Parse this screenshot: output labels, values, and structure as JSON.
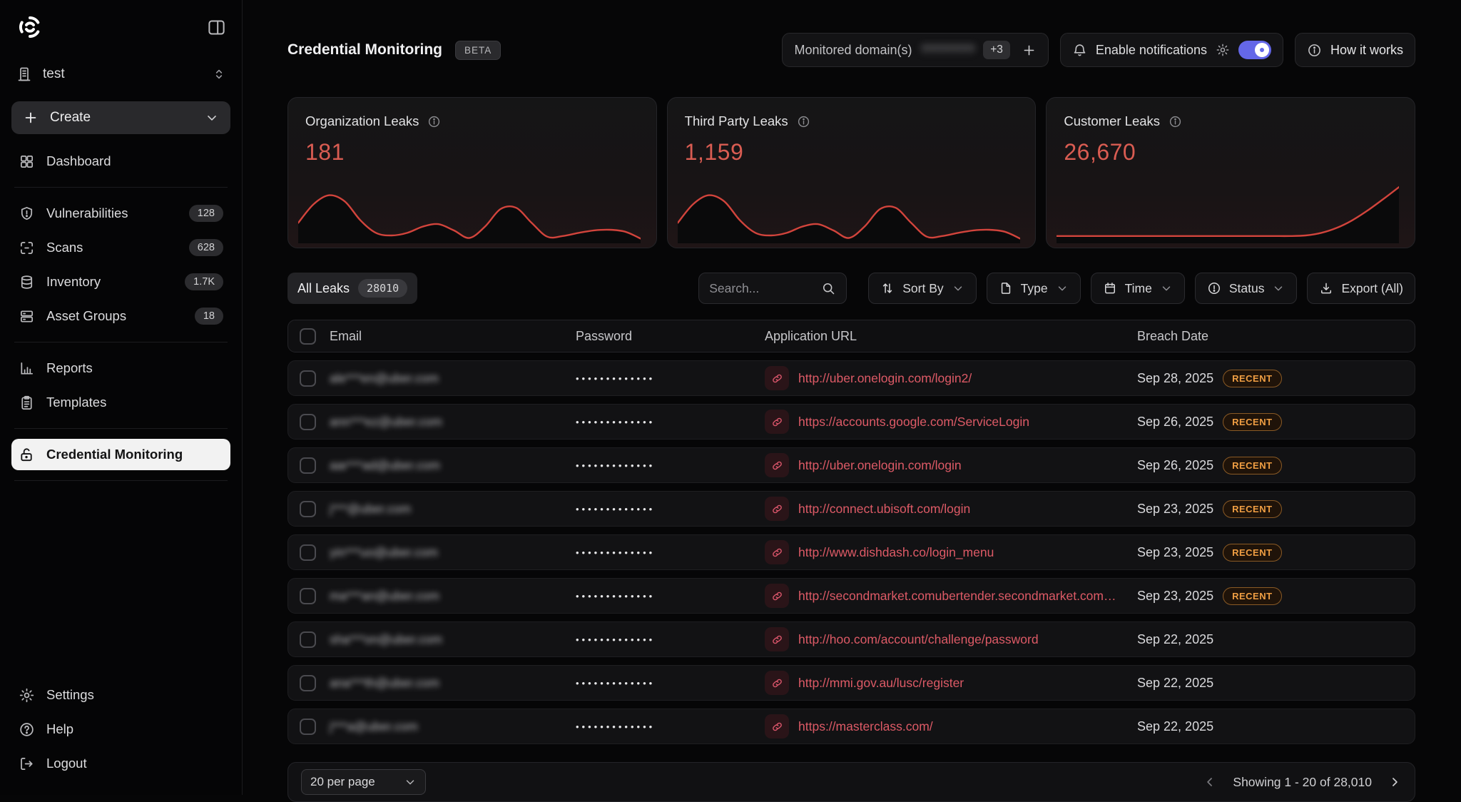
{
  "colors": {
    "accent_red": "#d95c52",
    "chart_red": "#d2443c",
    "link_red": "#dd5a66",
    "recent_orange": "#ef9e43",
    "toggle_purple": "#6467e8"
  },
  "sidebar": {
    "workspace": "test",
    "create_label": "Create",
    "items": [
      {
        "label": "Dashboard"
      },
      {
        "label": "Vulnerabilities",
        "badge": "128"
      },
      {
        "label": "Scans",
        "badge": "628"
      },
      {
        "label": "Inventory",
        "badge": "1.7K"
      },
      {
        "label": "Asset Groups",
        "badge": "18"
      },
      {
        "label": "Reports"
      },
      {
        "label": "Templates"
      },
      {
        "label": "Credential Monitoring"
      }
    ],
    "footer_items": [
      {
        "label": "Settings"
      },
      {
        "label": "Help"
      },
      {
        "label": "Logout"
      }
    ]
  },
  "header": {
    "title": "Credential Monitoring",
    "beta_badge": "BETA",
    "monitored_label": "Monitored domain(s)",
    "monitored_domain_masked": "????????",
    "monitored_more": "+3",
    "notifications_label": "Enable notifications",
    "how_it_works": "How it works"
  },
  "stats": [
    {
      "label": "Organization Leaks",
      "value": "181"
    },
    {
      "label": "Third Party Leaks",
      "value": "1,159"
    },
    {
      "label": "Customer Leaks",
      "value": "26,670"
    }
  ],
  "chart_data": [
    {
      "type": "area",
      "title": "Organization Leaks",
      "total": 181,
      "values": [
        28,
        58,
        72,
        62,
        32,
        12,
        8,
        12,
        22,
        26,
        16,
        4,
        22,
        50,
        52,
        28,
        6,
        7,
        12,
        16,
        17,
        14,
        3
      ]
    },
    {
      "type": "area",
      "title": "Third Party Leaks",
      "total": 1159,
      "values": [
        28,
        58,
        72,
        62,
        32,
        12,
        8,
        12,
        22,
        26,
        16,
        4,
        22,
        50,
        52,
        28,
        6,
        7,
        12,
        16,
        17,
        14,
        3
      ]
    },
    {
      "type": "area",
      "title": "Customer Leaks",
      "total": 26670,
      "values": [
        7,
        7,
        7,
        7,
        7,
        7,
        7,
        7,
        7,
        7,
        7,
        7,
        7,
        7,
        7,
        7,
        8,
        12,
        20,
        32,
        48,
        66,
        85
      ]
    }
  ],
  "filters": {
    "tab_label": "All Leaks",
    "tab_count": "28010",
    "search_placeholder": "Search...",
    "buttons": [
      {
        "label": "Sort By"
      },
      {
        "label": "Type"
      },
      {
        "label": "Time"
      },
      {
        "label": "Status"
      },
      {
        "label": "Export (All)"
      }
    ]
  },
  "table": {
    "columns": [
      "Email",
      "Password",
      "Application URL",
      "Breach Date"
    ],
    "recent_label": "RECENT",
    "rows": [
      {
        "email": "ale***en@uber.com",
        "password": "•••••••••••••",
        "url": "http://uber.onelogin.com/login2/",
        "date": "Sep 28, 2025",
        "recent": true
      },
      {
        "email": "ann***ez@uber.com",
        "password": "•••••••••••••",
        "url": "https://accounts.google.com/ServiceLogin",
        "date": "Sep 26, 2025",
        "recent": true
      },
      {
        "email": "aar***ad@uber.com",
        "password": "•••••••••••••",
        "url": "http://uber.onelogin.com/login",
        "date": "Sep 26, 2025",
        "recent": true
      },
      {
        "email": "j***@uber.com",
        "password": "•••••••••••••",
        "url": "http://connect.ubisoft.com/login",
        "date": "Sep 23, 2025",
        "recent": true
      },
      {
        "email": "yin***uo@uber.com",
        "password": "•••••••••••••",
        "url": "http://www.dishdash.co/login_menu",
        "date": "Sep 23, 2025",
        "recent": true
      },
      {
        "email": "ma***an@uber.com",
        "password": "•••••••••••••",
        "url": "http://secondmarket.comubertender.secondmarket.com…",
        "date": "Sep 23, 2025",
        "recent": true
      },
      {
        "email": "sha***on@uber.com",
        "password": "•••••••••••••",
        "url": "http://hoo.com/account/challenge/password",
        "date": "Sep 22, 2025",
        "recent": false
      },
      {
        "email": "ana***th@uber.com",
        "password": "•••••••••••••",
        "url": "http://mmi.gov.au/lusc/register",
        "date": "Sep 22, 2025",
        "recent": false
      },
      {
        "email": "j***a@uber.com",
        "password": "•••••••••••••",
        "url": "https://masterclass.com/",
        "date": "Sep 22, 2025",
        "recent": false
      }
    ]
  },
  "footer": {
    "per_page": "20 per page",
    "showing_text": "Showing 1 - 20 of 28,010"
  }
}
